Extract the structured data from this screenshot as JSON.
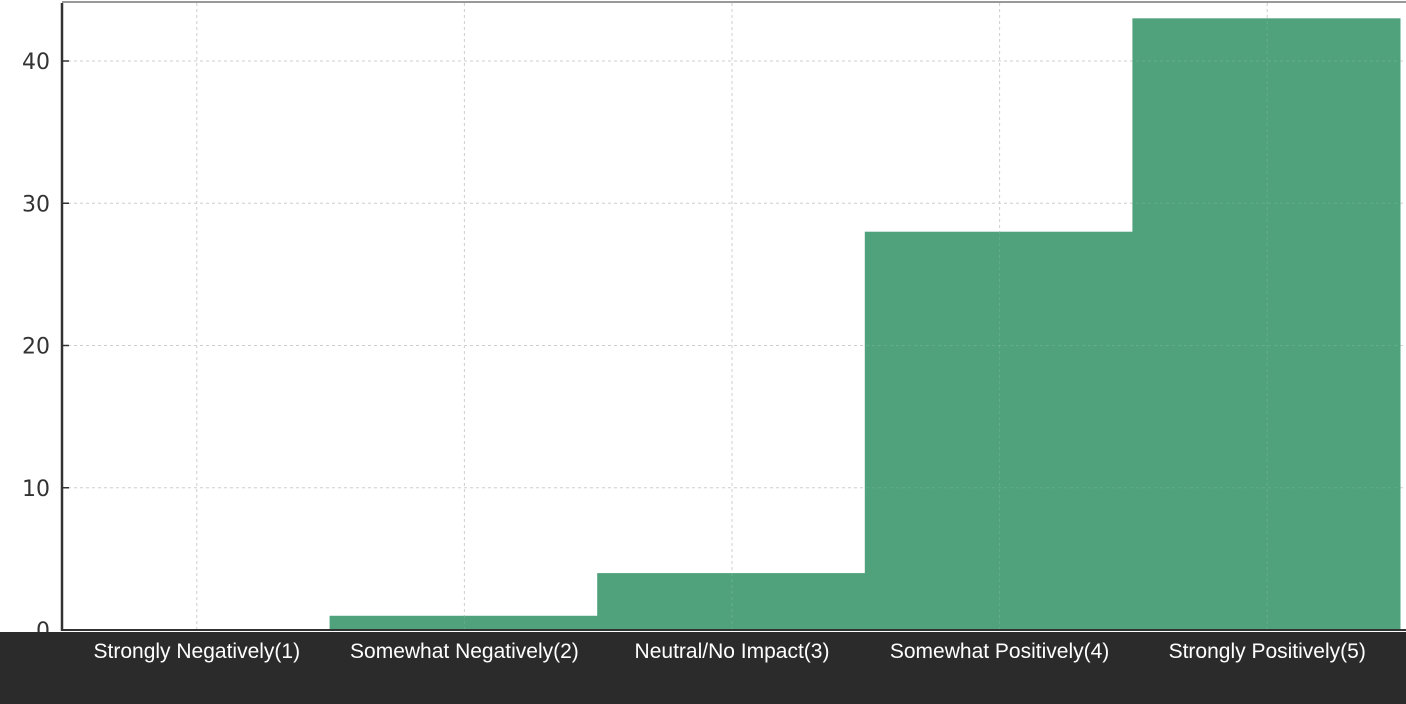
{
  "chart_data": {
    "type": "bar",
    "categories": [
      "Strongly Negatively(1)",
      "Somewhat Negatively(2)",
      "Neutral/No Impact(3)",
      "Somewhat Positively(4)",
      "Strongly Positively(5)"
    ],
    "values": [
      0,
      1,
      4,
      28,
      43
    ],
    "title": "",
    "xlabel": "",
    "ylabel": "",
    "ylim": [
      0,
      44
    ],
    "yticks": [
      0,
      10,
      20,
      30,
      40
    ],
    "grid": true,
    "legend": "none"
  },
  "colors": {
    "bar": "#4fa27c",
    "axis": "#333333",
    "label_band": "#2b2b2b",
    "background": "#ffffff"
  }
}
